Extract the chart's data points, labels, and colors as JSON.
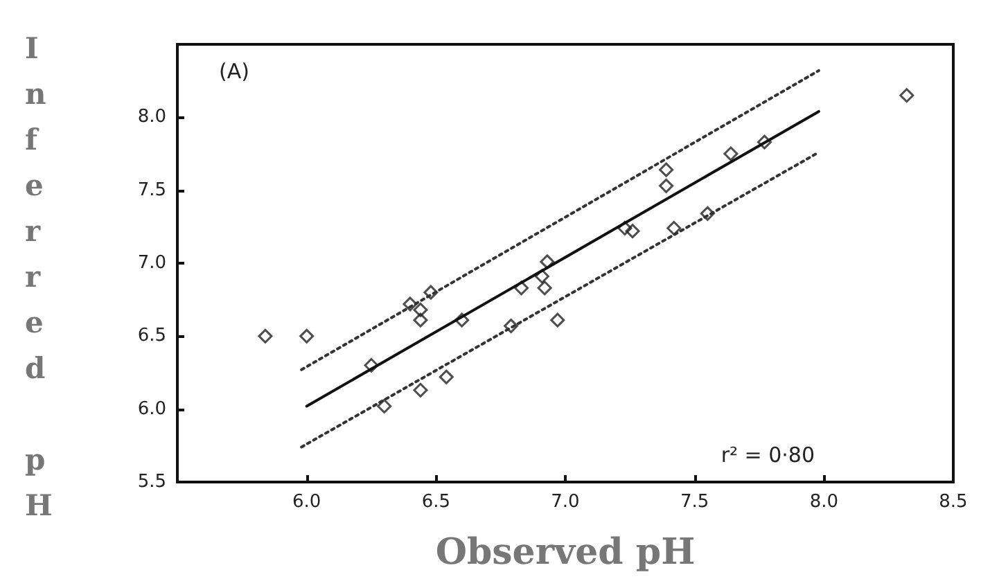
{
  "chart_data": {
    "type": "scatter",
    "xlabel": "Observed pH",
    "ylabel": "Inferred pH",
    "annotations": [
      "(A)",
      "r² = 0·80"
    ],
    "x": [
      5.84,
      6.0,
      6.25,
      6.3,
      6.4,
      6.44,
      6.44,
      6.44,
      6.48,
      6.54,
      6.6,
      6.79,
      6.83,
      6.91,
      6.92,
      6.93,
      6.97,
      7.23,
      7.26,
      7.39,
      7.39,
      7.42,
      7.55,
      7.64,
      7.77,
      8.32
    ],
    "series": [
      {
        "color": "#222222",
        "marker": "diamond",
        "values": [
          6.5,
          6.5,
          6.3,
          6.02,
          6.72,
          6.68,
          6.61,
          6.13,
          6.8,
          6.22,
          6.61,
          6.57,
          6.83,
          6.91,
          6.83,
          7.01,
          6.61,
          7.24,
          7.22,
          7.64,
          7.53,
          7.24,
          7.34,
          7.75,
          7.83,
          8.15
        ]
      },
      {
        "type": "line",
        "color": "#111111",
        "line_style": "solid",
        "marker": "none",
        "x": [
          6.0,
          7.98
        ],
        "values": [
          6.02,
          8.04
        ]
      },
      {
        "type": "line",
        "color": "#333333",
        "line_style": "dotted",
        "marker": "none",
        "x": [
          5.98,
          7.98
        ],
        "values": [
          6.27,
          8.32
        ]
      },
      {
        "type": "line",
        "color": "#333333",
        "line_style": "dotted",
        "marker": "none",
        "x": [
          5.98,
          7.98
        ],
        "values": [
          5.74,
          7.76
        ]
      }
    ],
    "xlim": [
      5.5,
      8.5
    ],
    "ylim": [
      5.5,
      8.5
    ],
    "xticks": [
      {
        "value": 6.0,
        "label": "6.0"
      },
      {
        "value": 6.5,
        "label": "6.5"
      },
      {
        "value": 7.0,
        "label": "7.0"
      },
      {
        "value": 7.5,
        "label": "7.5"
      },
      {
        "value": 8.0,
        "label": "8.0"
      },
      {
        "value": 8.5,
        "label": "8.5"
      }
    ],
    "yticks": [
      {
        "value": 5.5,
        "label": "5.5"
      },
      {
        "value": 6.0,
        "label": "6.0"
      },
      {
        "value": 6.5,
        "label": "6.5"
      },
      {
        "value": 7.0,
        "label": "7.0"
      },
      {
        "value": 7.5,
        "label": "7.5"
      },
      {
        "value": 8.0,
        "label": "8.0"
      }
    ],
    "grid": false
  }
}
